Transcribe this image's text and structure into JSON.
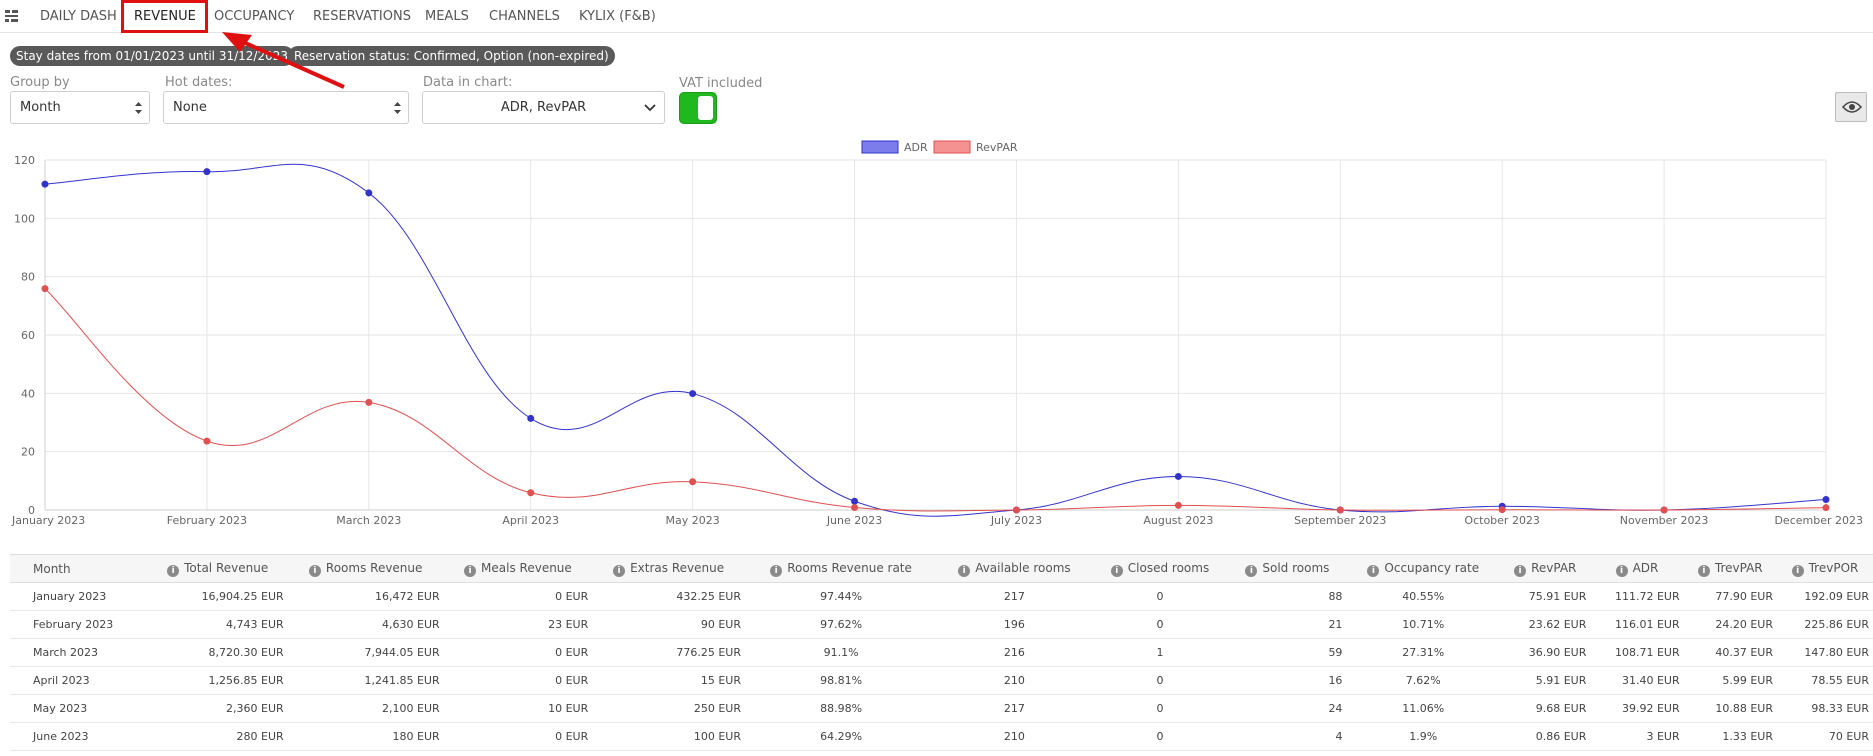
{
  "nav": {
    "tabs": [
      {
        "label": "DAILY DASH"
      },
      {
        "label": "REVENUE",
        "active": true
      },
      {
        "label": "OCCUPANCY"
      },
      {
        "label": "RESERVATIONS"
      },
      {
        "label": "MEALS"
      },
      {
        "label": "CHANNELS"
      },
      {
        "label": "KYLIX (F&B)"
      }
    ]
  },
  "filters": {
    "chips": [
      "Stay dates from 01/01/2023 until 31/12/2023",
      "Reservation status: Confirmed, Option (non-expired)"
    ]
  },
  "controls": {
    "group_by": {
      "label": "Group by",
      "value": "Month"
    },
    "hot_dates": {
      "label": "Hot dates:",
      "value": "None"
    },
    "data_in_chart": {
      "label": "Data in chart:",
      "value": "ADR, RevPAR"
    },
    "vat": {
      "label": "VAT included",
      "on": true
    }
  },
  "colors": {
    "adr": "#3333cc",
    "revpar": "#e05050",
    "highlight": "#e01010",
    "toggle": "#1fb81f"
  },
  "chart_data": {
    "type": "line",
    "x": [
      "January 2023",
      "February 2023",
      "March 2023",
      "April 2023",
      "May 2023",
      "June 2023",
      "July 2023",
      "August 2023",
      "September 2023",
      "October 2023",
      "November 2023",
      "December 2023"
    ],
    "series": [
      {
        "name": "ADR",
        "values": [
          111.72,
          116.01,
          108.71,
          31.4,
          39.92,
          3,
          0,
          11.5,
          0,
          1.3,
          0,
          3.6
        ]
      },
      {
        "name": "RevPAR",
        "values": [
          75.91,
          23.62,
          36.9,
          5.91,
          9.68,
          0.86,
          0,
          1.6,
          0,
          0.1,
          0,
          0.8
        ]
      }
    ],
    "y_ticks": [
      0,
      20,
      40,
      60,
      80,
      100,
      120
    ],
    "ylim": [
      0,
      120
    ],
    "grid": true,
    "legend": "top-center"
  },
  "table": {
    "columns": [
      {
        "label": "Month",
        "info": false,
        "align": "left"
      },
      {
        "label": "Total Revenue",
        "info": true,
        "align": "right"
      },
      {
        "label": "Rooms Revenue",
        "info": true,
        "align": "right"
      },
      {
        "label": "Meals Revenue",
        "info": true,
        "align": "right"
      },
      {
        "label": "Extras Revenue",
        "info": true,
        "align": "right"
      },
      {
        "label": "Rooms Revenue rate",
        "info": true,
        "align": "center"
      },
      {
        "label": "Available rooms",
        "info": true,
        "align": "center"
      },
      {
        "label": "Closed rooms",
        "info": true,
        "align": "center"
      },
      {
        "label": "Sold rooms",
        "info": true,
        "align": "right"
      },
      {
        "label": "Occupancy rate",
        "info": true,
        "align": "center"
      },
      {
        "label": "RevPAR",
        "info": true,
        "align": "right"
      },
      {
        "label": "ADR",
        "info": true,
        "align": "right"
      },
      {
        "label": "TrevPAR",
        "info": true,
        "align": "right"
      },
      {
        "label": "TrevPOR",
        "info": true,
        "align": "right"
      }
    ],
    "rows": [
      [
        "January 2023",
        "16,904.25 EUR",
        "16,472 EUR",
        "0 EUR",
        "432.25 EUR",
        "97.44%",
        "217",
        "0",
        "88",
        "40.55%",
        "75.91 EUR",
        "111.72 EUR",
        "77.90 EUR",
        "192.09 EUR"
      ],
      [
        "February 2023",
        "4,743 EUR",
        "4,630 EUR",
        "23 EUR",
        "90 EUR",
        "97.62%",
        "196",
        "0",
        "21",
        "10.71%",
        "23.62 EUR",
        "116.01 EUR",
        "24.20 EUR",
        "225.86 EUR"
      ],
      [
        "March 2023",
        "8,720.30 EUR",
        "7,944.05 EUR",
        "0 EUR",
        "776.25 EUR",
        "91.1%",
        "216",
        "1",
        "59",
        "27.31%",
        "36.90 EUR",
        "108.71 EUR",
        "40.37 EUR",
        "147.80 EUR"
      ],
      [
        "April 2023",
        "1,256.85 EUR",
        "1,241.85 EUR",
        "0 EUR",
        "15 EUR",
        "98.81%",
        "210",
        "0",
        "16",
        "7.62%",
        "5.91 EUR",
        "31.40 EUR",
        "5.99 EUR",
        "78.55 EUR"
      ],
      [
        "May 2023",
        "2,360 EUR",
        "2,100 EUR",
        "10 EUR",
        "250 EUR",
        "88.98%",
        "217",
        "0",
        "24",
        "11.06%",
        "9.68 EUR",
        "39.92 EUR",
        "10.88 EUR",
        "98.33 EUR"
      ],
      [
        "June 2023",
        "280 EUR",
        "180 EUR",
        "0 EUR",
        "100 EUR",
        "64.29%",
        "210",
        "0",
        "4",
        "1.9%",
        "0.86 EUR",
        "3 EUR",
        "1.33 EUR",
        "70 EUR"
      ]
    ]
  }
}
